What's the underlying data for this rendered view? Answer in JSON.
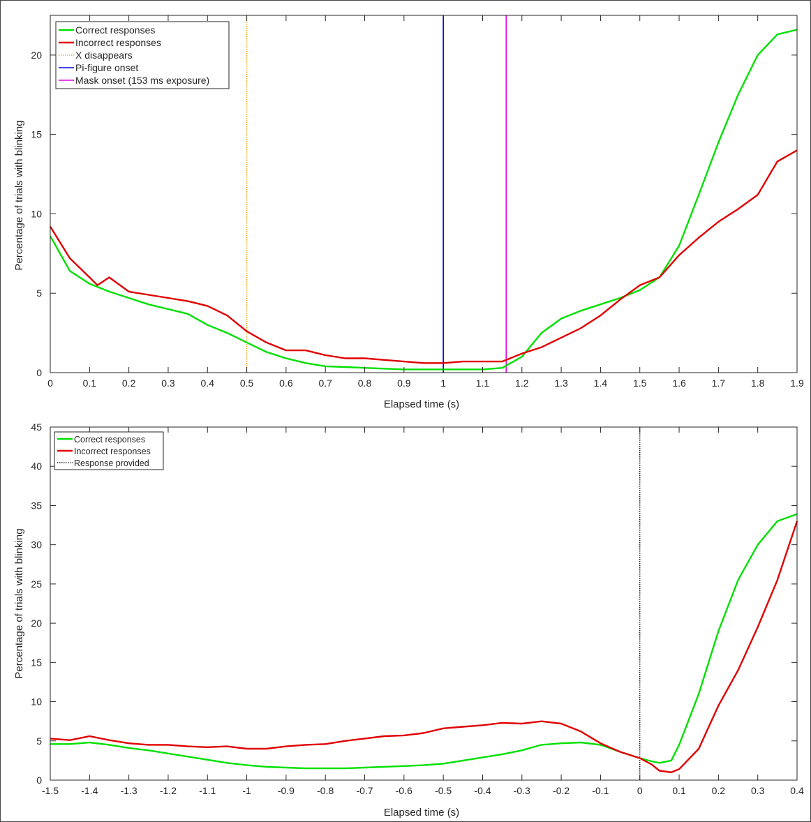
{
  "chart_data": [
    {
      "type": "line",
      "xlabel": "Elapsed time (s)",
      "ylabel": "Percentage of trials with blinking",
      "xlim": [
        0,
        1.9
      ],
      "ylim": [
        0,
        22.5
      ],
      "xticks": [
        "0",
        "0.1",
        "0.2",
        "0.3",
        "0.4",
        "0.5",
        "0.6",
        "0.7",
        "0.8",
        "0.9",
        "1",
        "1.1",
        "1.2",
        "1.3",
        "1.4",
        "1.5",
        "1.6",
        "1.7",
        "1.8",
        "1.9"
      ],
      "yticks": [
        "0",
        "5",
        "10",
        "15",
        "20"
      ],
      "legend_position": "top-left",
      "grid": false,
      "series": [
        {
          "name": "Correct responses",
          "color": "#00e000",
          "x": [
            0,
            0.05,
            0.1,
            0.15,
            0.2,
            0.25,
            0.3,
            0.35,
            0.4,
            0.45,
            0.5,
            0.55,
            0.6,
            0.65,
            0.7,
            0.75,
            0.8,
            0.85,
            0.9,
            0.95,
            1.0,
            1.05,
            1.1,
            1.15,
            1.2,
            1.25,
            1.3,
            1.35,
            1.4,
            1.45,
            1.5,
            1.55,
            1.6,
            1.65,
            1.7,
            1.75,
            1.8,
            1.85,
            1.9
          ],
          "y": [
            8.6,
            6.4,
            5.6,
            5.1,
            4.7,
            4.3,
            4.0,
            3.7,
            3.0,
            2.5,
            1.9,
            1.3,
            0.9,
            0.6,
            0.4,
            0.35,
            0.3,
            0.25,
            0.2,
            0.2,
            0.2,
            0.2,
            0.2,
            0.3,
            1.0,
            2.5,
            3.4,
            3.9,
            4.3,
            4.7,
            5.2,
            6.0,
            8.0,
            11.2,
            14.5,
            17.5,
            20.0,
            21.3,
            21.6
          ]
        },
        {
          "name": "Incorrect responses",
          "color": "#e00000",
          "x": [
            0,
            0.05,
            0.1,
            0.12,
            0.15,
            0.2,
            0.25,
            0.3,
            0.35,
            0.4,
            0.45,
            0.5,
            0.55,
            0.6,
            0.65,
            0.7,
            0.75,
            0.8,
            0.85,
            0.9,
            0.95,
            1.0,
            1.05,
            1.1,
            1.15,
            1.2,
            1.25,
            1.3,
            1.35,
            1.4,
            1.45,
            1.5,
            1.55,
            1.6,
            1.65,
            1.7,
            1.75,
            1.8,
            1.85,
            1.9
          ],
          "y": [
            9.2,
            7.2,
            6.0,
            5.5,
            6.0,
            5.1,
            4.9,
            4.7,
            4.5,
            4.2,
            3.6,
            2.6,
            1.9,
            1.4,
            1.4,
            1.1,
            0.9,
            0.9,
            0.8,
            0.7,
            0.6,
            0.6,
            0.7,
            0.7,
            0.7,
            1.2,
            1.6,
            2.2,
            2.8,
            3.6,
            4.6,
            5.5,
            6.0,
            7.4,
            8.5,
            9.5,
            10.3,
            11.2,
            13.3,
            14.0
          ]
        }
      ],
      "vlines": [
        {
          "name": "X disappears",
          "x": 0.5,
          "color": "#f0a000",
          "style": "dotted"
        },
        {
          "name": "Pi-figure onset",
          "x": 1.0,
          "color": "#0000e0",
          "style": "solid"
        },
        {
          "name": "Mask onset (153 ms exposure)",
          "x": 1.16,
          "color": "#e000e0",
          "style": "solid"
        }
      ]
    },
    {
      "type": "line",
      "xlabel": "Elapsed time (s)",
      "ylabel": "Percentage of trials with blinking",
      "xlim": [
        -1.5,
        0.4
      ],
      "ylim": [
        0,
        45
      ],
      "xticks": [
        "-1.5",
        "-1.4",
        "-1.3",
        "-1.2",
        "-1.1",
        "-1",
        "-0.9",
        "-0.8",
        "-0.7",
        "-0.6",
        "-0.5",
        "-0.4",
        "-0.3",
        "-0.2",
        "-0.1",
        "0",
        "0.1",
        "0.2",
        "0.3",
        "0.4"
      ],
      "yticks": [
        "0",
        "5",
        "10",
        "15",
        "20",
        "25",
        "30",
        "35",
        "40",
        "45"
      ],
      "legend_position": "top-left",
      "grid": false,
      "series": [
        {
          "name": "Correct responses",
          "color": "#00e000",
          "x": [
            -1.5,
            -1.45,
            -1.4,
            -1.35,
            -1.3,
            -1.25,
            -1.2,
            -1.15,
            -1.1,
            -1.05,
            -1.0,
            -0.95,
            -0.9,
            -0.85,
            -0.8,
            -0.75,
            -0.7,
            -0.65,
            -0.6,
            -0.55,
            -0.5,
            -0.45,
            -0.4,
            -0.35,
            -0.3,
            -0.25,
            -0.2,
            -0.15,
            -0.1,
            -0.05,
            0.0,
            0.03,
            0.05,
            0.08,
            0.1,
            0.15,
            0.2,
            0.25,
            0.3,
            0.35,
            0.4
          ],
          "y": [
            4.6,
            4.6,
            4.8,
            4.5,
            4.1,
            3.8,
            3.4,
            3.0,
            2.6,
            2.2,
            1.9,
            1.7,
            1.6,
            1.5,
            1.5,
            1.5,
            1.6,
            1.7,
            1.8,
            1.9,
            2.1,
            2.5,
            2.9,
            3.3,
            3.8,
            4.5,
            4.7,
            4.8,
            4.5,
            3.6,
            2.8,
            2.4,
            2.2,
            2.5,
            4.5,
            11.0,
            19.0,
            25.5,
            30.0,
            33.0,
            33.9
          ]
        },
        {
          "name": "Incorrect responses",
          "color": "#e00000",
          "x": [
            -1.5,
            -1.45,
            -1.4,
            -1.35,
            -1.3,
            -1.25,
            -1.2,
            -1.15,
            -1.1,
            -1.05,
            -1.0,
            -0.95,
            -0.9,
            -0.85,
            -0.8,
            -0.75,
            -0.7,
            -0.65,
            -0.6,
            -0.55,
            -0.5,
            -0.45,
            -0.4,
            -0.35,
            -0.3,
            -0.25,
            -0.2,
            -0.15,
            -0.1,
            -0.05,
            0.0,
            0.03,
            0.05,
            0.08,
            0.1,
            0.15,
            0.2,
            0.25,
            0.3,
            0.35,
            0.4
          ],
          "y": [
            5.3,
            5.1,
            5.6,
            5.1,
            4.7,
            4.5,
            4.5,
            4.3,
            4.2,
            4.3,
            4.0,
            4.0,
            4.3,
            4.5,
            4.6,
            5.0,
            5.3,
            5.6,
            5.7,
            6.0,
            6.6,
            6.8,
            7.0,
            7.3,
            7.2,
            7.5,
            7.2,
            6.2,
            4.7,
            3.6,
            2.8,
            2.0,
            1.2,
            1.0,
            1.4,
            4.0,
            9.5,
            14.0,
            19.5,
            25.5,
            33.0
          ]
        }
      ],
      "vlines": [
        {
          "name": "Response provided",
          "x": 0.0,
          "color": "#000000",
          "style": "dotted"
        }
      ]
    }
  ]
}
